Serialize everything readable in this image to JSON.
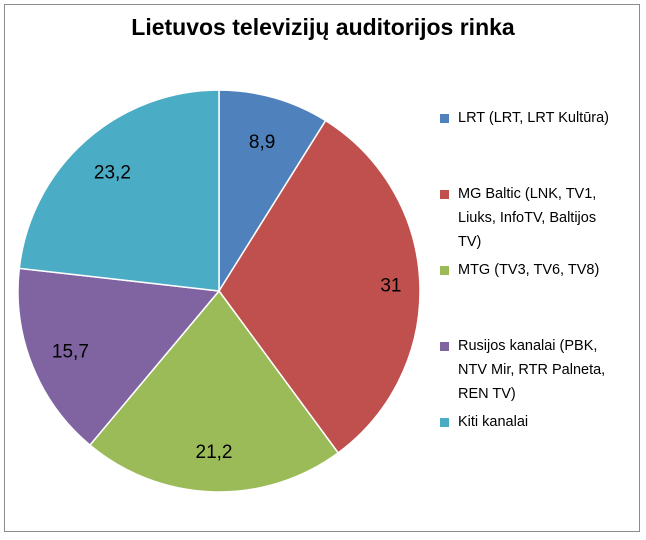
{
  "chart_data": {
    "type": "pie",
    "title": "Lietuvos televizijų auditorijos rinka",
    "categories": [
      "LRT (LRT, LRT Kultūra)",
      "MG Baltic (LNK, TV1, Liuks, InfoTV, Baltijos TV)",
      "MTG (TV3, TV6, TV8)",
      "Rusijos kanalai (PBK, NTV Mir, RTR Palneta, REN TV)",
      "Kiti kanalai"
    ],
    "values": [
      8.9,
      31,
      21.2,
      15.7,
      23.2
    ],
    "data_labels": [
      "8,9",
      "31",
      "21,2",
      "15,7",
      "23,2"
    ],
    "colors": [
      "#4F81BD",
      "#C0504D",
      "#9BBB59",
      "#8064A2",
      "#4BACC6"
    ],
    "legend": {
      "placement": "right",
      "items": [
        {
          "lines": [
            "LRT (LRT, LRT Kultūra)"
          ]
        },
        {
          "lines": [
            "MG Baltic (LNK, TV1,",
            "Liuks, InfoTV, Baltijos",
            "TV)"
          ]
        },
        {
          "lines": [
            "MTG (TV3, TV6, TV8)"
          ]
        },
        {
          "lines": [
            "Rusijos kanalai (PBK,",
            "NTV Mir, RTR Palneta,",
            "REN TV)"
          ]
        },
        {
          "lines": [
            "Kiti kanalai"
          ]
        }
      ]
    }
  }
}
